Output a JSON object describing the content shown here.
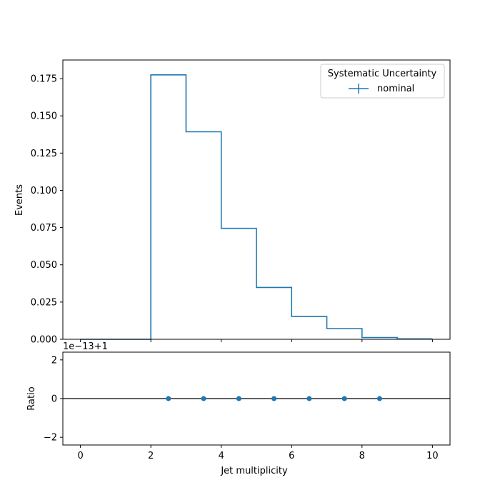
{
  "chart_data": [
    {
      "type": "line",
      "drawstyle": "steps",
      "bin_edges": [
        0,
        1,
        2,
        3,
        4,
        5,
        6,
        7,
        8,
        9,
        10
      ],
      "series": [
        {
          "name": "nominal",
          "values": [
            0.0,
            0.0,
            0.1775,
            0.1393,
            0.0745,
            0.0348,
            0.0153,
            0.0072,
            0.0012,
            0.0003
          ],
          "color": "#1f77b4"
        }
      ],
      "ylabel": "Events",
      "xlim": [
        -0.5,
        10.5
      ],
      "ylim": [
        0,
        0.1875
      ],
      "yticks": [
        "0.000",
        "0.025",
        "0.050",
        "0.075",
        "0.100",
        "0.125",
        "0.150",
        "0.175"
      ],
      "legend": {
        "title": "Systematic Uncertainty",
        "entries": [
          "nominal"
        ],
        "placement": "upper right"
      },
      "grid": false
    },
    {
      "type": "scatter",
      "x": [
        2.5,
        3.5,
        4.5,
        5.5,
        6.5,
        7.5,
        8.5
      ],
      "y": [
        0,
        0,
        0,
        0,
        0,
        0,
        0
      ],
      "reference_line": 0,
      "offset_text": "1e−13+1",
      "xlabel": "Jet multiplicity",
      "ylabel": "Ratio",
      "xlim": [
        -0.5,
        10.5
      ],
      "ylim": [
        -2.4,
        2.4
      ],
      "xticks": [
        "0",
        "2",
        "4",
        "6",
        "8",
        "10"
      ],
      "yticks": [
        "−2",
        "0",
        "2"
      ],
      "color": "#1f77b4",
      "grid": false
    }
  ]
}
